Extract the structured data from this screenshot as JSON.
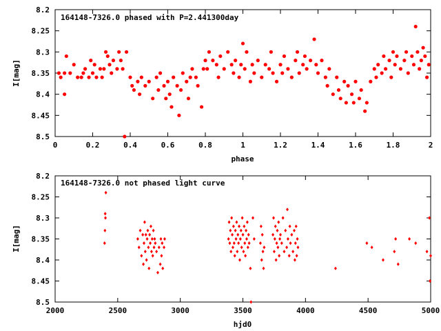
{
  "chart_data": [
    {
      "type": "scatter",
      "title": "164148-7326.0 phased with P=2.441300day",
      "xlabel": "phase",
      "ylabel": "I[mag]",
      "xlim": [
        0,
        2
      ],
      "ylim": [
        8.5,
        8.2
      ],
      "y_inverted": true,
      "x_ticks": [
        "0",
        "0.2",
        "0.4",
        "0.6",
        "0.8",
        "1",
        "1.2",
        "1.4",
        "1.6",
        "1.8",
        "2"
      ],
      "y_ticks": [
        "8.2",
        "8.25",
        "8.3",
        "8.35",
        "8.4",
        "8.45",
        "8.5"
      ],
      "marker": "filled circle",
      "color": "#ff0000",
      "grid": false,
      "legend": "none",
      "points": [
        [
          0.02,
          8.35
        ],
        [
          0.03,
          8.36
        ],
        [
          0.05,
          8.35
        ],
        [
          0.05,
          8.4
        ],
        [
          0.06,
          8.31
        ],
        [
          0.08,
          8.35
        ],
        [
          0.1,
          8.33
        ],
        [
          0.12,
          8.36
        ],
        [
          0.14,
          8.36
        ],
        [
          0.15,
          8.35
        ],
        [
          0.16,
          8.34
        ],
        [
          0.18,
          8.36
        ],
        [
          0.19,
          8.32
        ],
        [
          0.2,
          8.35
        ],
        [
          0.21,
          8.33
        ],
        [
          0.22,
          8.36
        ],
        [
          0.24,
          8.34
        ],
        [
          0.25,
          8.36
        ],
        [
          0.26,
          8.34
        ],
        [
          0.27,
          8.3
        ],
        [
          0.28,
          8.31
        ],
        [
          0.29,
          8.33
        ],
        [
          0.3,
          8.35
        ],
        [
          0.31,
          8.32
        ],
        [
          0.33,
          8.34
        ],
        [
          0.34,
          8.3
        ],
        [
          0.35,
          8.32
        ],
        [
          0.36,
          8.34
        ],
        [
          0.37,
          8.5
        ],
        [
          0.38,
          8.3
        ],
        [
          0.4,
          8.36
        ],
        [
          0.41,
          8.38
        ],
        [
          0.42,
          8.39
        ],
        [
          0.44,
          8.37
        ],
        [
          0.45,
          8.4
        ],
        [
          0.46,
          8.36
        ],
        [
          0.48,
          8.38
        ],
        [
          0.5,
          8.37
        ],
        [
          0.52,
          8.41
        ],
        [
          0.54,
          8.36
        ],
        [
          0.55,
          8.39
        ],
        [
          0.56,
          8.35
        ],
        [
          0.58,
          8.38
        ],
        [
          0.59,
          8.41
        ],
        [
          0.6,
          8.37
        ],
        [
          0.61,
          8.4
        ],
        [
          0.62,
          8.43
        ],
        [
          0.63,
          8.36
        ],
        [
          0.65,
          8.38
        ],
        [
          0.66,
          8.45
        ],
        [
          0.67,
          8.39
        ],
        [
          0.68,
          8.35
        ],
        [
          0.7,
          8.37
        ],
        [
          0.71,
          8.41
        ],
        [
          0.72,
          8.36
        ],
        [
          0.73,
          8.34
        ],
        [
          0.75,
          8.36
        ],
        [
          0.76,
          8.38
        ],
        [
          0.78,
          8.43
        ],
        [
          0.79,
          8.34
        ],
        [
          0.8,
          8.32
        ],
        [
          0.81,
          8.34
        ],
        [
          0.82,
          8.3
        ],
        [
          0.84,
          8.32
        ],
        [
          0.86,
          8.33
        ],
        [
          0.87,
          8.36
        ],
        [
          0.88,
          8.31
        ],
        [
          0.9,
          8.34
        ],
        [
          0.92,
          8.3
        ],
        [
          0.94,
          8.33
        ],
        [
          0.95,
          8.35
        ],
        [
          0.96,
          8.32
        ],
        [
          0.98,
          8.36
        ],
        [
          0.99,
          8.33
        ],
        [
          1.0,
          8.28
        ],
        [
          1.01,
          8.34
        ],
        [
          1.02,
          8.3
        ],
        [
          1.04,
          8.37
        ],
        [
          1.05,
          8.33
        ],
        [
          1.06,
          8.35
        ],
        [
          1.08,
          8.32
        ],
        [
          1.1,
          8.36
        ],
        [
          1.12,
          8.33
        ],
        [
          1.14,
          8.34
        ],
        [
          1.15,
          8.3
        ],
        [
          1.16,
          8.35
        ],
        [
          1.18,
          8.37
        ],
        [
          1.2,
          8.33
        ],
        [
          1.21,
          8.35
        ],
        [
          1.22,
          8.31
        ],
        [
          1.24,
          8.34
        ],
        [
          1.26,
          8.36
        ],
        [
          1.28,
          8.32
        ],
        [
          1.29,
          8.3
        ],
        [
          1.3,
          8.35
        ],
        [
          1.32,
          8.33
        ],
        [
          1.33,
          8.31
        ],
        [
          1.34,
          8.34
        ],
        [
          1.36,
          8.32
        ],
        [
          1.38,
          8.27
        ],
        [
          1.39,
          8.33
        ],
        [
          1.4,
          8.35
        ],
        [
          1.42,
          8.32
        ],
        [
          1.44,
          8.36
        ],
        [
          1.45,
          8.38
        ],
        [
          1.46,
          8.34
        ],
        [
          1.48,
          8.4
        ],
        [
          1.5,
          8.36
        ],
        [
          1.51,
          8.39
        ],
        [
          1.52,
          8.41
        ],
        [
          1.54,
          8.37
        ],
        [
          1.55,
          8.42
        ],
        [
          1.56,
          8.38
        ],
        [
          1.58,
          8.4
        ],
        [
          1.59,
          8.42
        ],
        [
          1.6,
          8.37
        ],
        [
          1.62,
          8.41
        ],
        [
          1.63,
          8.39
        ],
        [
          1.65,
          8.44
        ],
        [
          1.66,
          8.42
        ],
        [
          1.68,
          8.37
        ],
        [
          1.7,
          8.34
        ],
        [
          1.71,
          8.36
        ],
        [
          1.72,
          8.33
        ],
        [
          1.74,
          8.35
        ],
        [
          1.75,
          8.31
        ],
        [
          1.76,
          8.34
        ],
        [
          1.78,
          8.32
        ],
        [
          1.79,
          8.36
        ],
        [
          1.8,
          8.3
        ],
        [
          1.81,
          8.33
        ],
        [
          1.82,
          8.31
        ],
        [
          1.84,
          8.34
        ],
        [
          1.86,
          8.32
        ],
        [
          1.87,
          8.3
        ],
        [
          1.88,
          8.35
        ],
        [
          1.9,
          8.31
        ],
        [
          1.91,
          8.33
        ],
        [
          1.92,
          8.24
        ],
        [
          1.93,
          8.3
        ],
        [
          1.94,
          8.34
        ],
        [
          1.95,
          8.32
        ],
        [
          1.96,
          8.29
        ],
        [
          1.97,
          8.31
        ],
        [
          1.98,
          8.36
        ],
        [
          1.99,
          8.33
        ]
      ]
    },
    {
      "type": "scatter",
      "title": "164148-7326.0 not phased light curve",
      "xlabel": "hjd0",
      "ylabel": "I[mag]",
      "xlim": [
        2000,
        5000
      ],
      "ylim": [
        8.5,
        8.2
      ],
      "y_inverted": true,
      "x_ticks": [
        "2000",
        "2500",
        "3000",
        "3500",
        "4000",
        "4500",
        "5000"
      ],
      "y_ticks": [
        "8.2",
        "8.25",
        "8.3",
        "8.35",
        "8.4",
        "8.45",
        "8.5"
      ],
      "marker": "filled diamond",
      "color": "#ff0000",
      "grid": false,
      "legend": "none",
      "points": [
        [
          2395,
          8.36
        ],
        [
          2398,
          8.33
        ],
        [
          2400,
          8.29
        ],
        [
          2402,
          8.3
        ],
        [
          2405,
          8.24
        ],
        [
          2660,
          8.35
        ],
        [
          2670,
          8.37
        ],
        [
          2680,
          8.33
        ],
        [
          2690,
          8.39
        ],
        [
          2700,
          8.34
        ],
        [
          2705,
          8.41
        ],
        [
          2710,
          8.36
        ],
        [
          2715,
          8.31
        ],
        [
          2720,
          8.38
        ],
        [
          2725,
          8.34
        ],
        [
          2730,
          8.4
        ],
        [
          2735,
          8.35
        ],
        [
          2740,
          8.33
        ],
        [
          2745,
          8.37
        ],
        [
          2750,
          8.42
        ],
        [
          2755,
          8.34
        ],
        [
          2760,
          8.36
        ],
        [
          2765,
          8.32
        ],
        [
          2770,
          8.38
        ],
        [
          2775,
          8.35
        ],
        [
          2780,
          8.39
        ],
        [
          2785,
          8.33
        ],
        [
          2790,
          8.37
        ],
        [
          2795,
          8.35
        ],
        [
          2800,
          8.36
        ],
        [
          2810,
          8.38
        ],
        [
          2820,
          8.43
        ],
        [
          2830,
          8.37
        ],
        [
          2840,
          8.41
        ],
        [
          2845,
          8.35
        ],
        [
          2850,
          8.39
        ],
        [
          2855,
          8.36
        ],
        [
          2860,
          8.42
        ],
        [
          2870,
          8.37
        ],
        [
          2875,
          8.35
        ],
        [
          3385,
          8.35
        ],
        [
          3390,
          8.31
        ],
        [
          3395,
          8.36
        ],
        [
          3400,
          8.33
        ],
        [
          3405,
          8.38
        ],
        [
          3410,
          8.3
        ],
        [
          3415,
          8.34
        ],
        [
          3420,
          8.37
        ],
        [
          3425,
          8.32
        ],
        [
          3430,
          8.36
        ],
        [
          3435,
          8.39
        ],
        [
          3440,
          8.33
        ],
        [
          3445,
          8.35
        ],
        [
          3450,
          8.31
        ],
        [
          3455,
          8.38
        ],
        [
          3460,
          8.34
        ],
        [
          3465,
          8.36
        ],
        [
          3470,
          8.32
        ],
        [
          3475,
          8.4
        ],
        [
          3480,
          8.35
        ],
        [
          3485,
          8.33
        ],
        [
          3490,
          8.37
        ],
        [
          3495,
          8.3
        ],
        [
          3500,
          8.34
        ],
        [
          3505,
          8.38
        ],
        [
          3510,
          8.32
        ],
        [
          3515,
          8.36
        ],
        [
          3520,
          8.39
        ],
        [
          3525,
          8.33
        ],
        [
          3530,
          8.35
        ],
        [
          3535,
          8.31
        ],
        [
          3540,
          8.37
        ],
        [
          3545,
          8.34
        ],
        [
          3550,
          8.36
        ],
        [
          3560,
          8.42
        ],
        [
          3565,
          8.5
        ],
        [
          3580,
          8.3
        ],
        [
          3590,
          8.35
        ],
        [
          3640,
          8.36
        ],
        [
          3645,
          8.32
        ],
        [
          3650,
          8.4
        ],
        [
          3655,
          8.34
        ],
        [
          3660,
          8.38
        ],
        [
          3665,
          8.42
        ],
        [
          3670,
          8.37
        ],
        [
          3740,
          8.34
        ],
        [
          3745,
          8.3
        ],
        [
          3750,
          8.38
        ],
        [
          3755,
          8.35
        ],
        [
          3760,
          8.32
        ],
        [
          3765,
          8.4
        ],
        [
          3770,
          8.36
        ],
        [
          3775,
          8.33
        ],
        [
          3780,
          8.37
        ],
        [
          3785,
          8.31
        ],
        [
          3790,
          8.39
        ],
        [
          3795,
          8.35
        ],
        [
          3800,
          8.34
        ],
        [
          3810,
          8.36
        ],
        [
          3820,
          8.3
        ],
        [
          3830,
          8.38
        ],
        [
          3840,
          8.33
        ],
        [
          3850,
          8.37
        ],
        [
          3855,
          8.28
        ],
        [
          3860,
          8.35
        ],
        [
          3870,
          8.39
        ],
        [
          3875,
          8.32
        ],
        [
          3880,
          8.36
        ],
        [
          3890,
          8.34
        ],
        [
          3900,
          8.38
        ],
        [
          3910,
          8.33
        ],
        [
          3915,
          8.4
        ],
        [
          3920,
          8.36
        ],
        [
          3925,
          8.32
        ],
        [
          3930,
          8.39
        ],
        [
          3935,
          8.35
        ],
        [
          3940,
          8.37
        ],
        [
          4240,
          8.42
        ],
        [
          4490,
          8.36
        ],
        [
          4530,
          8.37
        ],
        [
          4620,
          8.4
        ],
        [
          4710,
          8.38
        ],
        [
          4720,
          8.35
        ],
        [
          4740,
          8.41
        ],
        [
          4830,
          8.35
        ],
        [
          4880,
          8.36
        ],
        [
          4970,
          8.38
        ],
        [
          4990,
          8.3
        ],
        [
          4995,
          8.45
        ],
        [
          5000,
          8.39
        ]
      ]
    }
  ]
}
